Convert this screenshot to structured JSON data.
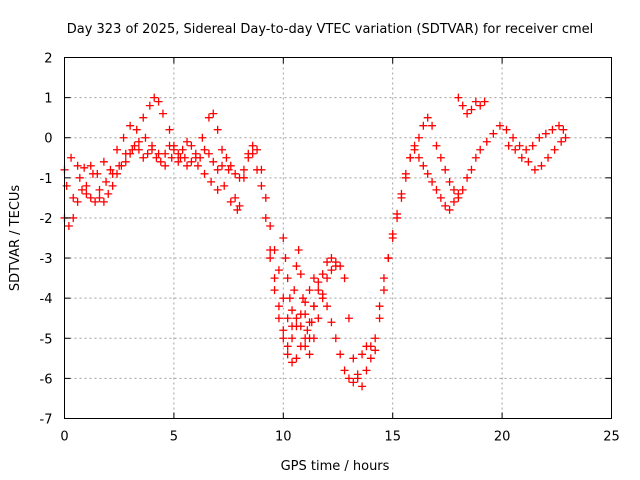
{
  "chart_data": {
    "type": "scatter",
    "title": "Day 323 of 2025, Sidereal Day-to-day VTEC variation (SDTVAR) for receiver cmel",
    "xlabel": "GPS time / hours",
    "ylabel": "SDTVAR / TECUs",
    "xlim": [
      0,
      25
    ],
    "ylim": [
      -7,
      2
    ],
    "xticks": [
      "0",
      "5",
      "10",
      "15",
      "20",
      "25"
    ],
    "yticks": [
      "2",
      "1",
      "0",
      "-1",
      "-2",
      "-3",
      "-4",
      "-5",
      "-6",
      "-7"
    ],
    "grid": true,
    "marker": "plus",
    "colors": {
      "series": "#ff0000",
      "grid": "#a0a0a0",
      "axis": "#000000"
    },
    "series": [
      {
        "name": "",
        "traces": [
          [
            [
              0.0,
              -0.8
            ],
            [
              0.3,
              -0.5
            ],
            [
              0.6,
              -0.7
            ],
            [
              0.9,
              -0.75
            ],
            [
              1.2,
              -0.7
            ],
            [
              1.5,
              -0.9
            ],
            [
              1.8,
              -0.6
            ],
            [
              2.1,
              -0.8
            ],
            [
              2.4,
              -0.3
            ],
            [
              2.7,
              0.0
            ],
            [
              3.0,
              0.3
            ],
            [
              3.3,
              0.2
            ],
            [
              3.6,
              0.5
            ],
            [
              3.9,
              0.8
            ],
            [
              4.1,
              1.0
            ],
            [
              4.3,
              0.9
            ],
            [
              4.5,
              0.6
            ],
            [
              4.8,
              0.2
            ],
            [
              5.0,
              -0.2
            ],
            [
              5.3,
              -0.5
            ],
            [
              5.6,
              -0.7
            ],
            [
              6.0,
              -0.5
            ],
            [
              6.3,
              0.0
            ],
            [
              6.6,
              0.5
            ],
            [
              6.8,
              0.6
            ],
            [
              7.0,
              0.2
            ],
            [
              7.2,
              -0.3
            ],
            [
              7.5,
              -0.8
            ],
            [
              7.8,
              -1.5
            ],
            [
              8.0,
              -1.7
            ],
            [
              8.2,
              -1.0
            ],
            [
              8.4,
              -0.4
            ],
            [
              8.6,
              -0.2
            ],
            [
              8.8,
              -0.3
            ],
            [
              9.0,
              -0.8
            ],
            [
              9.2,
              -1.5
            ],
            [
              9.4,
              -2.2
            ],
            [
              9.6,
              -2.8
            ],
            [
              9.8,
              -3.3
            ],
            [
              10.0,
              -4.0
            ],
            [
              10.2,
              -4.5
            ],
            [
              10.4,
              -4.7
            ],
            [
              10.6,
              -4.5
            ],
            [
              10.8,
              -4.7
            ],
            [
              11.0,
              -5.2
            ],
            [
              11.2,
              -5.4
            ],
            [
              11.4,
              -5.0
            ],
            [
              11.6,
              -4.5
            ],
            [
              11.8,
              -4.0
            ],
            [
              12.0,
              -3.5
            ],
            [
              12.2,
              -3.3
            ],
            [
              12.4,
              -3.1
            ],
            [
              12.6,
              -3.2
            ],
            [
              12.8,
              -3.5
            ],
            [
              13.0,
              -4.5
            ],
            [
              13.2,
              -5.5
            ],
            [
              13.4,
              -6.0
            ],
            [
              13.6,
              -6.2
            ],
            [
              13.8,
              -5.8
            ],
            [
              14.0,
              -5.2
            ],
            [
              14.2,
              -5.0
            ],
            [
              14.4,
              -4.2
            ],
            [
              14.6,
              -3.5
            ],
            [
              14.8,
              -3.0
            ],
            [
              15.0,
              -2.5
            ],
            [
              15.2,
              -2.0
            ],
            [
              15.4,
              -1.5
            ],
            [
              15.6,
              -1.0
            ],
            [
              15.8,
              -0.5
            ],
            [
              16.0,
              -0.2
            ],
            [
              16.2,
              0.0
            ],
            [
              16.4,
              0.3
            ],
            [
              16.6,
              0.5
            ],
            [
              16.8,
              0.3
            ],
            [
              17.0,
              -0.2
            ],
            [
              17.2,
              -0.5
            ],
            [
              17.4,
              -0.8
            ],
            [
              17.6,
              -1.1
            ],
            [
              17.8,
              -1.3
            ],
            [
              18.0,
              -1.5
            ],
            [
              18.2,
              -1.3
            ],
            [
              18.4,
              -1.0
            ],
            [
              18.6,
              -0.8
            ],
            [
              18.8,
              -0.5
            ],
            [
              19.0,
              -0.3
            ],
            [
              19.3,
              -0.1
            ],
            [
              19.6,
              0.1
            ],
            [
              19.9,
              0.3
            ],
            [
              20.2,
              0.2
            ],
            [
              20.5,
              0.0
            ],
            [
              20.8,
              -0.2
            ],
            [
              21.1,
              -0.3
            ],
            [
              21.4,
              -0.2
            ],
            [
              21.7,
              0.0
            ],
            [
              22.0,
              0.1
            ],
            [
              22.3,
              0.2
            ],
            [
              22.6,
              0.3
            ],
            [
              22.8,
              0.2
            ]
          ],
          [
            [
              0.0,
              -2.0
            ],
            [
              0.2,
              -2.2
            ],
            [
              0.4,
              -2.0
            ],
            [
              0.6,
              -1.6
            ],
            [
              0.8,
              -1.3
            ],
            [
              1.0,
              -1.4
            ],
            [
              1.2,
              -1.5
            ],
            [
              1.4,
              -1.6
            ],
            [
              1.6,
              -1.5
            ],
            [
              1.8,
              -1.6
            ],
            [
              2.0,
              -1.4
            ],
            [
              2.2,
              -1.2
            ],
            [
              2.4,
              -0.9
            ],
            [
              2.6,
              -0.7
            ],
            [
              2.8,
              -0.6
            ],
            [
              3.0,
              -0.4
            ],
            [
              3.2,
              -0.2
            ],
            [
              3.4,
              -0.3
            ],
            [
              3.6,
              -0.5
            ],
            [
              3.8,
              -0.4
            ],
            [
              4.0,
              -0.3
            ],
            [
              4.2,
              -0.5
            ],
            [
              4.4,
              -0.6
            ],
            [
              4.6,
              -0.4
            ],
            [
              4.8,
              -0.2
            ],
            [
              5.0,
              -0.3
            ],
            [
              5.2,
              -0.4
            ],
            [
              5.4,
              -0.3
            ],
            [
              5.6,
              -0.1
            ],
            [
              5.8,
              -0.2
            ],
            [
              6.0,
              -0.4
            ],
            [
              6.2,
              -0.5
            ],
            [
              6.4,
              -0.3
            ],
            [
              6.6,
              -0.4
            ],
            [
              6.8,
              -0.6
            ],
            [
              7.0,
              -0.8
            ],
            [
              7.2,
              -0.7
            ],
            [
              7.4,
              -0.5
            ],
            [
              7.6,
              -0.7
            ],
            [
              7.8,
              -0.9
            ],
            [
              8.0,
              -1.0
            ],
            [
              8.2,
              -0.8
            ],
            [
              8.4,
              -0.5
            ],
            [
              8.6,
              -0.4
            ],
            [
              8.8,
              -0.8
            ],
            [
              9.0,
              -1.2
            ],
            [
              9.2,
              -2.0
            ],
            [
              9.4,
              -2.8
            ],
            [
              9.6,
              -3.5
            ],
            [
              9.8,
              -4.2
            ],
            [
              10.0,
              -4.8
            ],
            [
              10.2,
              -5.2
            ],
            [
              10.4,
              -5.0
            ],
            [
              10.6,
              -4.7
            ],
            [
              10.8,
              -4.4
            ],
            [
              11.0,
              -4.1
            ],
            [
              11.2,
              -3.8
            ],
            [
              11.4,
              -3.5
            ],
            [
              11.6,
              -3.6
            ],
            [
              11.8,
              -3.9
            ],
            [
              12.0,
              -4.2
            ],
            [
              12.2,
              -4.6
            ],
            [
              12.4,
              -5.0
            ],
            [
              12.6,
              -5.4
            ],
            [
              12.8,
              -5.8
            ],
            [
              13.0,
              -6.0
            ],
            [
              13.2,
              -6.1
            ],
            [
              13.4,
              -5.9
            ],
            [
              13.6,
              -5.4
            ],
            [
              13.8,
              -5.2
            ],
            [
              14.0,
              -5.5
            ],
            [
              14.2,
              -5.3
            ],
            [
              14.4,
              -4.5
            ],
            [
              14.6,
              -3.8
            ],
            [
              14.8,
              -3.0
            ],
            [
              15.0,
              -2.4
            ],
            [
              15.2,
              -1.9
            ],
            [
              15.4,
              -1.4
            ],
            [
              15.6,
              -0.9
            ],
            [
              15.8,
              -0.5
            ],
            [
              16.0,
              -0.3
            ],
            [
              16.2,
              -0.5
            ],
            [
              16.4,
              -0.7
            ],
            [
              16.6,
              -0.9
            ],
            [
              16.8,
              -1.1
            ],
            [
              17.0,
              -1.3
            ],
            [
              17.2,
              -1.5
            ],
            [
              17.4,
              -1.7
            ],
            [
              17.6,
              -1.8
            ],
            [
              17.8,
              -1.6
            ],
            [
              18.0,
              -1.4
            ]
          ],
          [
            [
              0.1,
              -1.2
            ],
            [
              0.4,
              -1.5
            ],
            [
              0.7,
              -1.0
            ],
            [
              1.0,
              -1.2
            ],
            [
              1.3,
              -0.9
            ],
            [
              1.6,
              -1.3
            ],
            [
              1.9,
              -1.1
            ],
            [
              2.2,
              -0.9
            ],
            [
              2.5,
              -0.7
            ],
            [
              2.8,
              -0.4
            ],
            [
              3.1,
              -0.3
            ],
            [
              3.4,
              -0.1
            ],
            [
              3.7,
              0.0
            ],
            [
              4.0,
              -0.2
            ],
            [
              4.3,
              -0.4
            ],
            [
              4.6,
              -0.7
            ],
            [
              4.9,
              -0.5
            ],
            [
              5.2,
              -0.6
            ],
            [
              5.5,
              -0.5
            ],
            [
              5.8,
              -0.6
            ],
            [
              6.1,
              -0.7
            ],
            [
              6.4,
              -0.9
            ],
            [
              6.7,
              -1.1
            ],
            [
              7.0,
              -1.3
            ],
            [
              7.3,
              -1.2
            ],
            [
              7.6,
              -1.6
            ],
            [
              7.9,
              -1.8
            ]
          ],
          [
            [
              9.4,
              -3.0
            ],
            [
              9.6,
              -3.8
            ],
            [
              9.8,
              -4.5
            ],
            [
              10.0,
              -5.0
            ],
            [
              10.2,
              -5.4
            ],
            [
              10.4,
              -5.6
            ],
            [
              10.6,
              -5.5
            ],
            [
              10.8,
              -5.2
            ],
            [
              11.0,
              -5.0
            ],
            [
              11.2,
              -4.6
            ],
            [
              11.4,
              -4.2
            ],
            [
              11.6,
              -3.8
            ],
            [
              11.8,
              -3.4
            ],
            [
              12.0,
              -3.1
            ],
            [
              12.2,
              -3.0
            ],
            [
              12.4,
              -3.2
            ]
          ],
          [
            [
              10.0,
              -2.5
            ],
            [
              10.1,
              -3.0
            ],
            [
              10.2,
              -3.5
            ],
            [
              10.3,
              -4.0
            ],
            [
              10.4,
              -4.3
            ],
            [
              10.5,
              -3.8
            ],
            [
              10.6,
              -3.2
            ],
            [
              10.7,
              -2.8
            ],
            [
              10.8,
              -3.4
            ],
            [
              10.9,
              -4.0
            ],
            [
              11.0,
              -4.4
            ],
            [
              11.1,
              -4.8
            ],
            [
              11.2,
              -5.0
            ],
            [
              11.3,
              -4.6
            ],
            [
              11.4,
              -4.2
            ]
          ],
          [
            [
              18.0,
              1.0
            ],
            [
              18.2,
              0.8
            ],
            [
              18.4,
              0.6
            ],
            [
              18.6,
              0.7
            ],
            [
              18.8,
              0.9
            ],
            [
              19.0,
              0.8
            ],
            [
              19.2,
              0.9
            ]
          ],
          [
            [
              20.3,
              -0.2
            ],
            [
              20.6,
              -0.3
            ],
            [
              20.9,
              -0.5
            ],
            [
              21.2,
              -0.6
            ],
            [
              21.5,
              -0.8
            ],
            [
              21.8,
              -0.7
            ],
            [
              22.1,
              -0.5
            ],
            [
              22.4,
              -0.3
            ],
            [
              22.7,
              -0.1
            ],
            [
              22.9,
              0.0
            ]
          ]
        ]
      }
    ]
  }
}
